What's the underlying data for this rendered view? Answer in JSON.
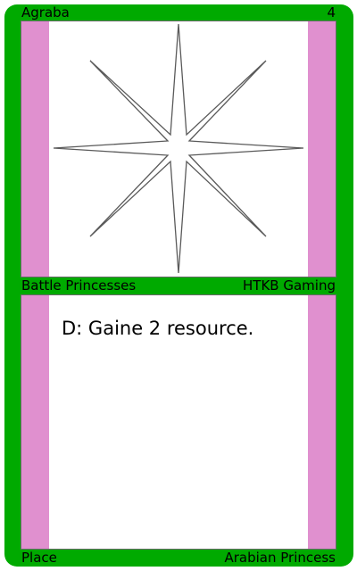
{
  "card": {
    "name": "Agraba",
    "cost": "4",
    "set_name": "Battle Princesses",
    "publisher": "HTKB Gaming",
    "rules_text": "D: Gaine 2 resource.",
    "card_type": "Place",
    "subtype": "Arabian Princess",
    "art_icon": "eight-point-star-icon"
  },
  "colors": {
    "border": "#00aa00",
    "stripe": "#e090cf",
    "panel": "#ffffff"
  }
}
